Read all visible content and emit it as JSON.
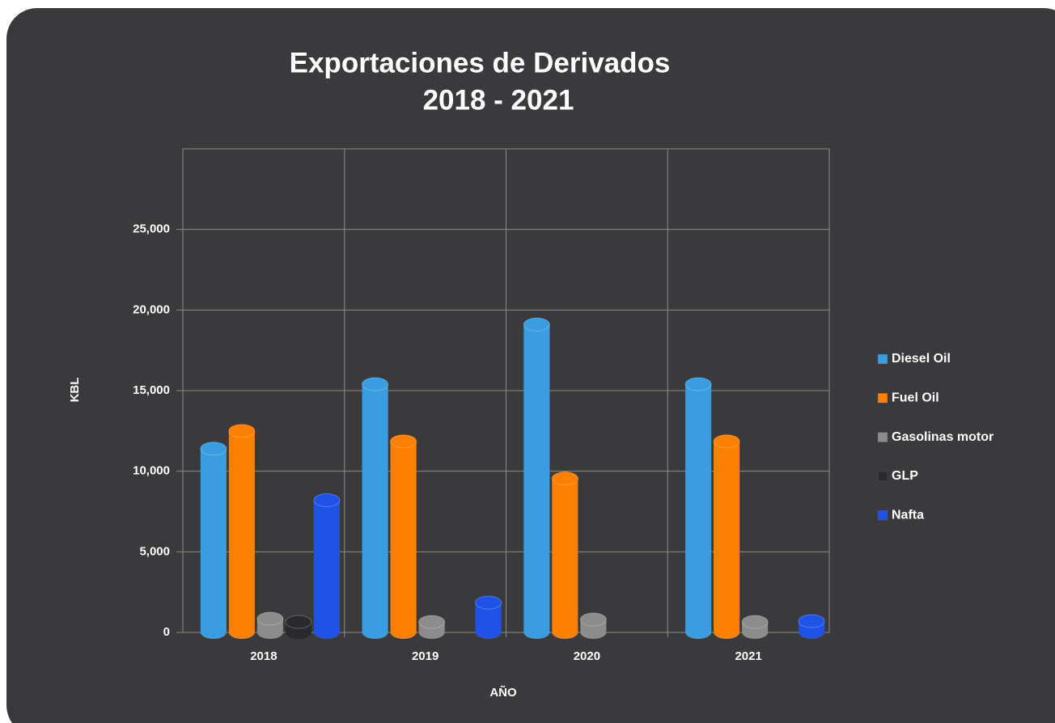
{
  "chart_data": {
    "type": "bar",
    "title": [
      "Exportaciones de Derivados",
      "2018 - 2021"
    ],
    "y_label": "KBL",
    "x_label": "AÑO",
    "categories": [
      "2018",
      "2019",
      "2020",
      "2021"
    ],
    "series": [
      {
        "name": "Diesel Oil",
        "color": "#3a9de0",
        "values": [
          11400,
          15400,
          19100,
          15400
        ]
      },
      {
        "name": "Fuel Oil",
        "color": "#ff7f00",
        "values": [
          12500,
          11850,
          9550,
          11850
        ]
      },
      {
        "name": "Gasolinas motor",
        "color": "#8c8c8c",
        "values": [
          850,
          650,
          800,
          650
        ]
      },
      {
        "name": "GLP",
        "color": "#2a2a2c",
        "values": [
          650,
          0,
          0,
          0
        ]
      },
      {
        "name": "Nafta",
        "color": "#1f52e6",
        "values": [
          8200,
          1850,
          0,
          700
        ]
      }
    ],
    "ylim": [
      0,
      30000
    ],
    "yticks": [
      0,
      {
        "value": 5000,
        "label": "5,000"
      },
      {
        "value": 10000,
        "label": "10,000"
      },
      {
        "value": 15000,
        "label": "15,000"
      },
      {
        "value": 20000,
        "label": "20,000"
      },
      {
        "value": 25000,
        "label": "25,000"
      }
    ],
    "grid": true,
    "legend": "right"
  }
}
